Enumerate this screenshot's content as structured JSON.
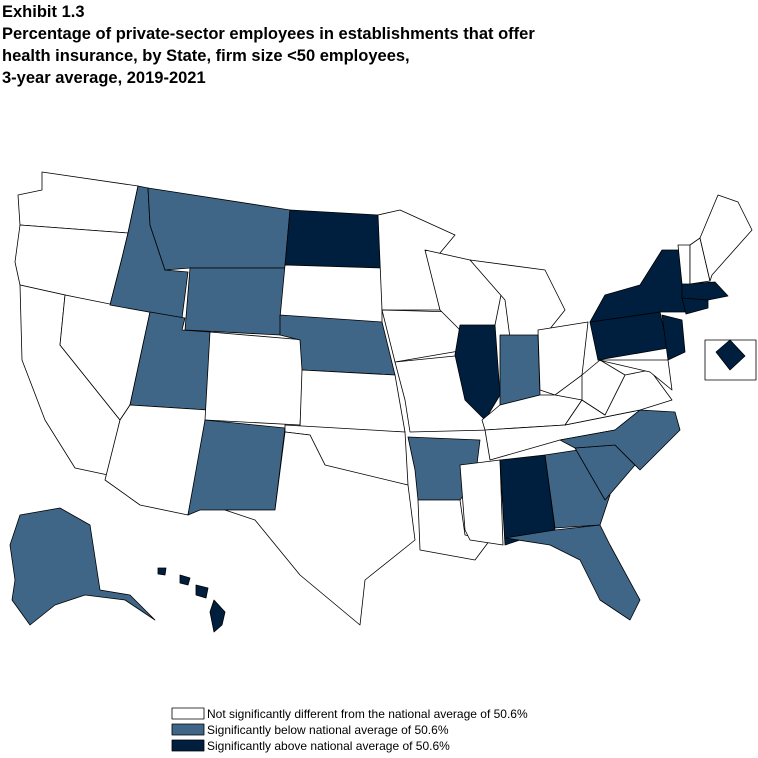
{
  "header": {
    "exhibit": "Exhibit 1.3",
    "title_lines": [
      "Percentage of private-sector employees in establishments that offer",
      "health insurance, by State, firm size <50 employees,",
      "3-year average, 2019-2021"
    ]
  },
  "legend": [
    {
      "label": "Not significantly different from the national average of 50.6%",
      "color": "#ffffff"
    },
    {
      "label": "Significantly below national average of 50.6%",
      "color": "#3f6587"
    },
    {
      "label": "Significantly above national average of 50.6%",
      "color": "#001f3f"
    }
  ]
}
